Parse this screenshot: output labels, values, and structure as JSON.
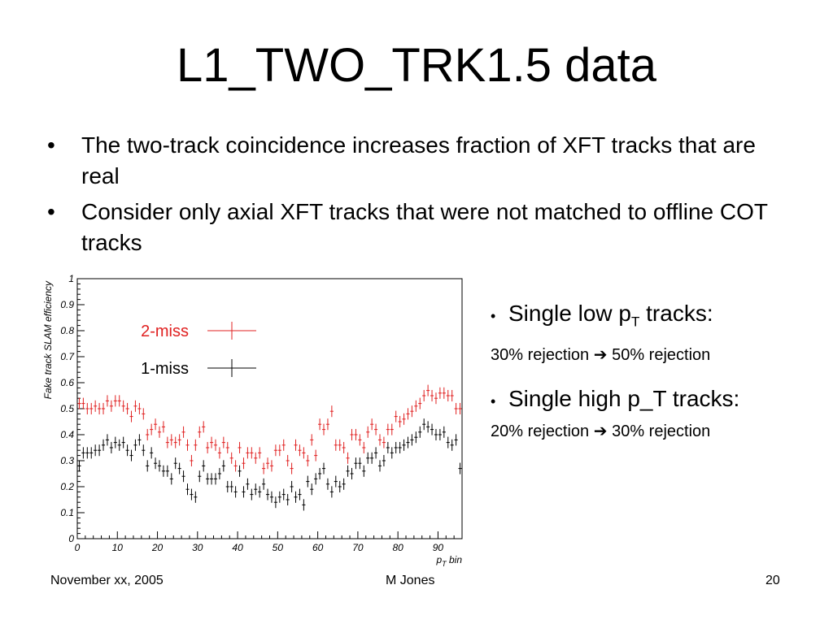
{
  "slide": {
    "title": "L1_TWO_TRK1.5 data",
    "bullets": [
      "The two-track coincidence increases fraction of XFT tracks that are real",
      "Consider only axial XFT tracks that were not matched to offline COT tracks"
    ],
    "side": {
      "low_head_pre": "Single low p",
      "low_head_sub": "T",
      "low_head_post": " tracks:",
      "low_text_a": "30% rejection ",
      "low_text_b": " 50% rejection",
      "high_head": "Single high p_T tracks:",
      "high_text_a": "20% rejection ",
      "high_text_b": " 30% rejection",
      "arrow_icon": "right-arrow-icon"
    },
    "footer": {
      "left": "November xx, 2005",
      "center": "M Jones",
      "right": "20"
    }
  },
  "chart_data": {
    "type": "scatter",
    "ylabel": "Fake track SLAM efficiency",
    "xlabel_pre": "p",
    "xlabel_sub": "T",
    "xlabel_post": " bin",
    "xlim": [
      0,
      96
    ],
    "ylim": [
      0,
      1
    ],
    "xticks": [
      0,
      10,
      20,
      30,
      40,
      50,
      60,
      70,
      80,
      90
    ],
    "yticks": [
      0,
      0.1,
      0.2,
      0.3,
      0.4,
      0.5,
      0.6,
      0.7,
      0.8,
      0.9,
      1
    ],
    "ytick_labels": [
      "0",
      "0.1",
      "0.2",
      "0.3",
      "0.4",
      "0.5",
      "0.6",
      "0.7",
      "0.8",
      "0.9",
      "1"
    ],
    "grid": false,
    "legend_position": "top-left",
    "x": [
      1,
      2,
      3,
      4,
      5,
      6,
      7,
      8,
      9,
      10,
      11,
      12,
      13,
      14,
      15,
      16,
      17,
      18,
      19,
      20,
      21,
      22,
      23,
      24,
      25,
      26,
      27,
      28,
      29,
      30,
      31,
      32,
      33,
      34,
      35,
      36,
      37,
      38,
      39,
      40,
      41,
      42,
      43,
      44,
      45,
      46,
      47,
      48,
      49,
      50,
      51,
      52,
      53,
      54,
      55,
      56,
      57,
      58,
      59,
      60,
      61,
      62,
      63,
      64,
      65,
      66,
      67,
      68,
      69,
      70,
      71,
      72,
      73,
      74,
      75,
      76,
      77,
      78,
      79,
      80,
      81,
      82,
      83,
      84,
      85,
      86,
      87,
      88,
      89,
      90,
      91,
      92,
      93,
      94,
      95,
      96
    ],
    "series": [
      {
        "name": "2-miss",
        "color": "#e02020",
        "values": [
          0.52,
          0.52,
          0.5,
          0.5,
          0.51,
          0.5,
          0.5,
          0.53,
          0.51,
          0.53,
          0.53,
          0.51,
          0.5,
          0.47,
          0.51,
          0.5,
          0.48,
          0.4,
          0.42,
          0.44,
          0.41,
          0.43,
          0.37,
          0.38,
          0.37,
          0.38,
          0.41,
          0.36,
          0.3,
          0.36,
          0.41,
          0.43,
          0.35,
          0.37,
          0.36,
          0.33,
          0.37,
          0.35,
          0.31,
          0.28,
          0.35,
          0.29,
          0.33,
          0.33,
          0.31,
          0.33,
          0.27,
          0.29,
          0.28,
          0.34,
          0.34,
          0.36,
          0.3,
          0.27,
          0.36,
          0.34,
          0.33,
          0.3,
          0.38,
          0.32,
          0.44,
          0.42,
          0.44,
          0.49,
          0.36,
          0.36,
          0.35,
          0.31,
          0.4,
          0.4,
          0.38,
          0.35,
          0.41,
          0.44,
          0.42,
          0.38,
          0.37,
          0.42,
          0.42,
          0.47,
          0.45,
          0.46,
          0.48,
          0.49,
          0.51,
          0.52,
          0.55,
          0.57,
          0.55,
          0.54,
          0.56,
          0.56,
          0.55,
          0.55,
          0.5,
          0.5
        ]
      },
      {
        "name": "1-miss",
        "color": "#000000",
        "values": [
          0.28,
          0.33,
          0.33,
          0.33,
          0.34,
          0.34,
          0.36,
          0.38,
          0.35,
          0.37,
          0.36,
          0.37,
          0.34,
          0.32,
          0.36,
          0.38,
          0.34,
          0.28,
          0.33,
          0.29,
          0.28,
          0.26,
          0.26,
          0.23,
          0.29,
          0.27,
          0.24,
          0.19,
          0.17,
          0.16,
          0.24,
          0.28,
          0.23,
          0.23,
          0.23,
          0.25,
          0.28,
          0.2,
          0.2,
          0.18,
          0.26,
          0.18,
          0.21,
          0.17,
          0.19,
          0.18,
          0.21,
          0.17,
          0.16,
          0.14,
          0.16,
          0.17,
          0.15,
          0.2,
          0.16,
          0.17,
          0.13,
          0.22,
          0.19,
          0.23,
          0.25,
          0.27,
          0.21,
          0.18,
          0.22,
          0.2,
          0.21,
          0.26,
          0.25,
          0.29,
          0.29,
          0.26,
          0.31,
          0.31,
          0.33,
          0.28,
          0.3,
          0.35,
          0.33,
          0.35,
          0.35,
          0.36,
          0.37,
          0.38,
          0.39,
          0.41,
          0.44,
          0.43,
          0.42,
          0.4,
          0.4,
          0.41,
          0.37,
          0.36,
          0.38,
          0.27
        ]
      }
    ]
  }
}
